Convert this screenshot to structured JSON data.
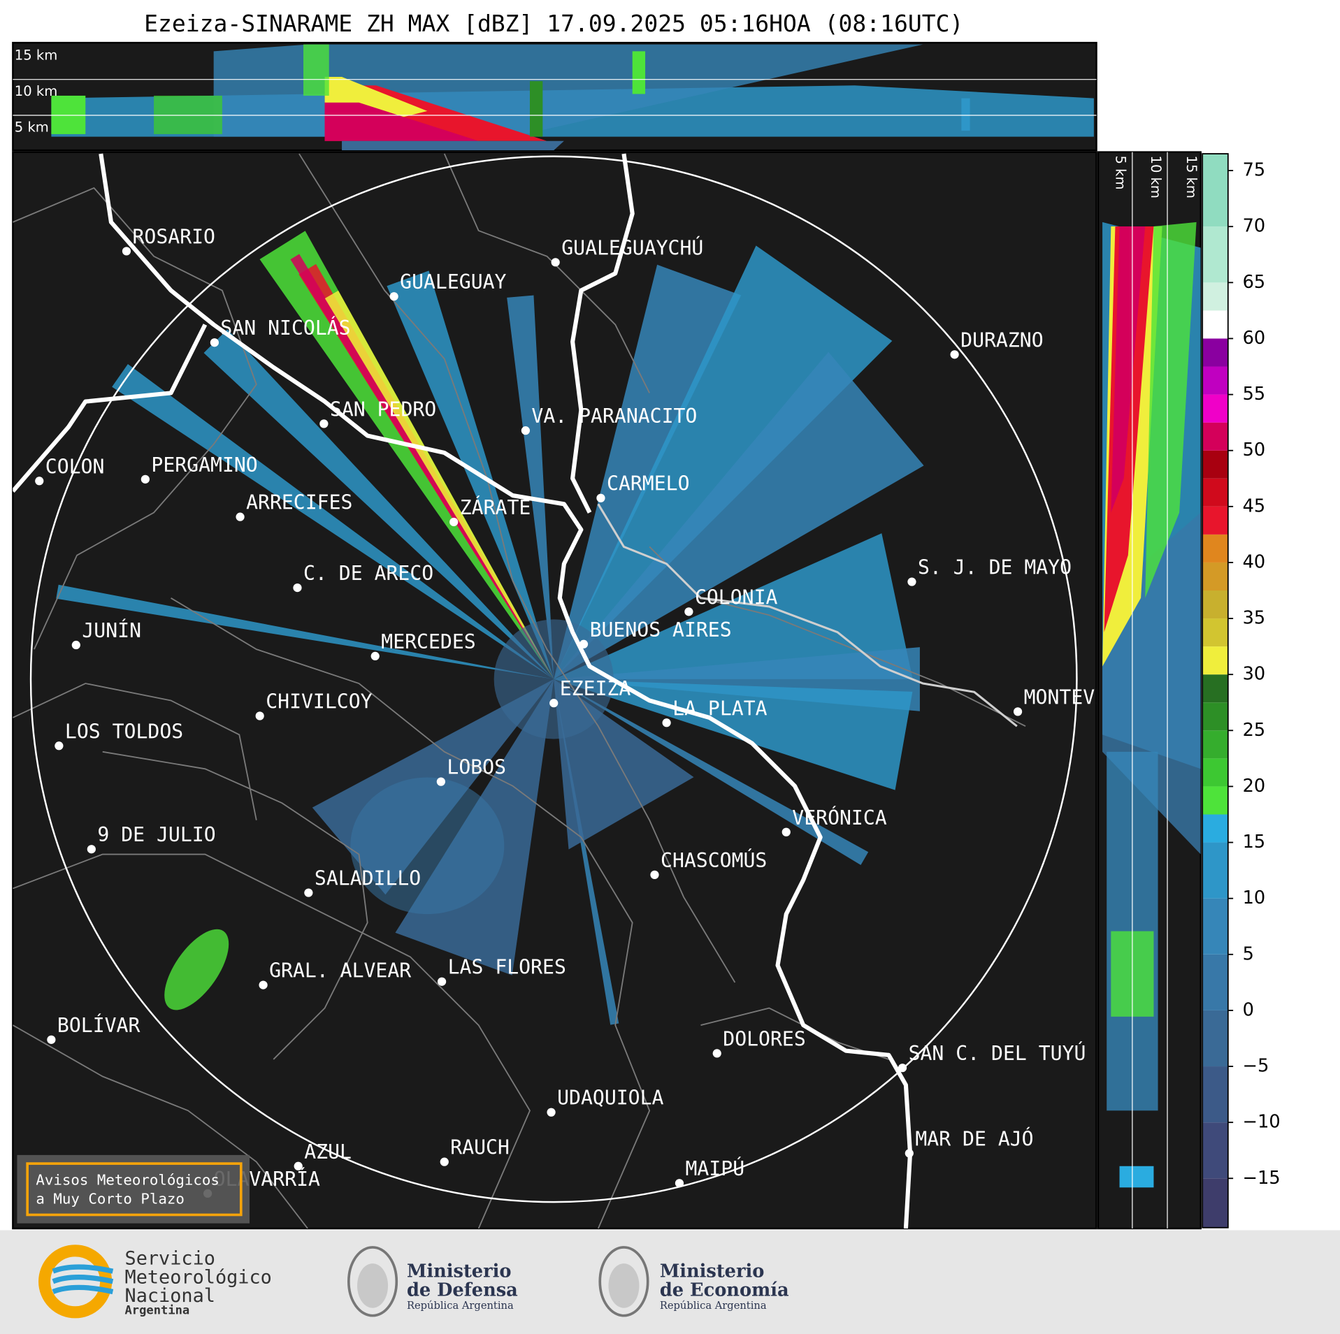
{
  "title": "Ezeiza-SINARAME ZH MAX [dBZ] 17.09.2025 05:16HOA (08:16UTC)",
  "heights": [
    "15 km",
    "10 km",
    "5 km"
  ],
  "cities": [
    "ROSARIO",
    "GUALEGUAYCHÚ",
    "GUALEGUAY",
    "SAN NICOLÁS",
    "DURAZNO",
    "SAN PEDRO",
    "VA. PARANACITO",
    "COLON",
    "PERGAMINO",
    "CARMELO",
    "ZÁRATE",
    "ARRECIFES",
    "C. DE ARECO",
    "S. J. DE MAYO",
    "COLONIA",
    "BUENOS AIRES",
    "JUNÍN",
    "MERCEDES",
    "EZEIZA",
    "MONTEVIDEO",
    "CHIVILCOY",
    "LA PLATA",
    "LOS TOLDOS",
    "LOBOS",
    "VERÓNICA",
    "9 DE JULIO",
    "CHASCOMÚS",
    "SALADILLO",
    "GRAL. ALVEAR",
    "LAS FLORES",
    "BOLÍVAR",
    "DOLORES",
    "SAN C. DEL TUYÚ",
    "UDAQUIOLA",
    "MAR DE AJÓ",
    "AZUL",
    "RAUCH",
    "MAIPÚ",
    "OLAVARRÍA"
  ],
  "warning_box": [
    "Avisos Meteorológicos",
    "a Muy Corto Plazo"
  ],
  "colorbar": {
    "lim": [
      -19.4,
      76.5
    ],
    "ticks": [
      75,
      70,
      65,
      60,
      55,
      50,
      45,
      40,
      35,
      30,
      25,
      20,
      15,
      10,
      5,
      0,
      {
        "value": -5,
        "label": "−5"
      },
      {
        "value": -10,
        "label": "−10"
      },
      {
        "value": -15,
        "label": "−15"
      }
    ],
    "bands": [
      {
        "from": -19.4,
        "to": -15,
        "color": "#3e3d6b"
      },
      {
        "from": -15,
        "to": -10,
        "color": "#3f4a7a"
      },
      {
        "from": -10,
        "to": -5,
        "color": "#3c5a88"
      },
      {
        "from": -5,
        "to": 0,
        "color": "#3a6a96"
      },
      {
        "from": 0,
        "to": 5,
        "color": "#3878a8"
      },
      {
        "from": 5,
        "to": 10,
        "color": "#3686b8"
      },
      {
        "from": 10,
        "to": 15,
        "color": "#2e96c8"
      },
      {
        "from": 15,
        "to": 17.5,
        "color": "#2aace0"
      },
      {
        "from": 17.5,
        "to": 20,
        "color": "#4ee33a"
      },
      {
        "from": 20,
        "to": 22.5,
        "color": "#3dc832"
      },
      {
        "from": 22.5,
        "to": 25,
        "color": "#35ad2d"
      },
      {
        "from": 25,
        "to": 27.5,
        "color": "#2d8f26"
      },
      {
        "from": 27.5,
        "to": 30,
        "color": "#276f22"
      },
      {
        "from": 30,
        "to": 32.5,
        "color": "#f0ee3c"
      },
      {
        "from": 32.5,
        "to": 35,
        "color": "#d2c530"
      },
      {
        "from": 35,
        "to": 37.5,
        "color": "#c8b02e"
      },
      {
        "from": 37.5,
        "to": 40,
        "color": "#d49a26"
      },
      {
        "from": 40,
        "to": 42.5,
        "color": "#e0861e"
      },
      {
        "from": 42.5,
        "to": 45,
        "color": "#e8152c"
      },
      {
        "from": 45,
        "to": 47.5,
        "color": "#d00a1c"
      },
      {
        "from": 47.5,
        "to": 50,
        "color": "#a80010"
      },
      {
        "from": 50,
        "to": 52.5,
        "color": "#d4005a"
      },
      {
        "from": 52.5,
        "to": 55,
        "color": "#f000c8"
      },
      {
        "from": 55,
        "to": 57.5,
        "color": "#c000c0"
      },
      {
        "from": 57.5,
        "to": 60,
        "color": "#8a00a0"
      },
      {
        "from": 60,
        "to": 62.5,
        "color": "#ffffff"
      },
      {
        "from": 62.5,
        "to": 65,
        "color": "#d0f0e0"
      },
      {
        "from": 65,
        "to": 70,
        "color": "#b0e8d0"
      },
      {
        "from": 70,
        "to": 76.5,
        "color": "#90dcc0"
      }
    ]
  },
  "logos": {
    "smn": [
      "Servicio",
      "Meteorológico",
      "Nacional",
      "Argentina"
    ],
    "defensa": [
      "Ministerio",
      "de Defensa",
      "República Argentina"
    ],
    "economia": [
      "Ministerio",
      "de Economía",
      "República Argentina"
    ]
  }
}
